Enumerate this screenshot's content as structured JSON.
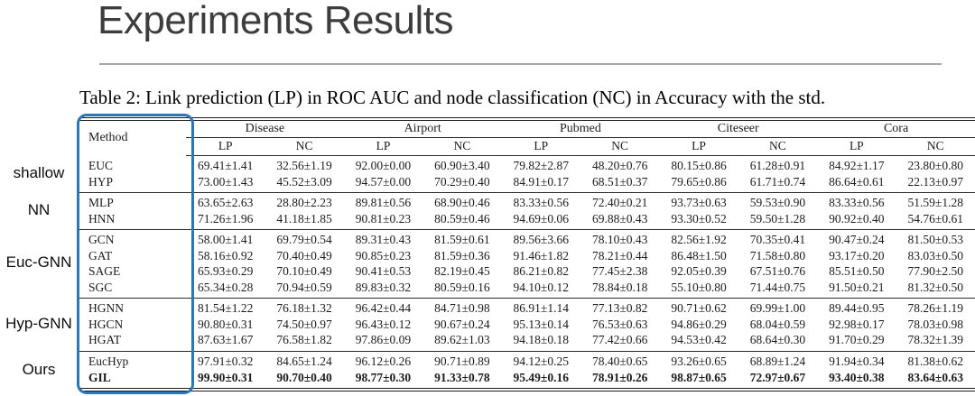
{
  "slide": {
    "title": "Experiments Results",
    "title_color": "#3d3d3d",
    "rule_color": "#a9a9a9"
  },
  "caption": "Table 2: Link prediction (LP) in ROC AUC and node classification (NC) in Accuracy with the std.",
  "table": {
    "outline_color": "#2e75b6",
    "method_header": "Method",
    "datasets": [
      "Disease",
      "Airport",
      "Pubmed",
      "Citeseer",
      "Cora"
    ],
    "metrics": [
      "LP",
      "NC"
    ],
    "groups": [
      {
        "label": "shallow",
        "rows": [
          {
            "method": "EUC",
            "bold": false,
            "values": [
              "69.41±1.41",
              "32.56±1.19",
              "92.00±0.00",
              "60.90±3.40",
              "79.82±2.87",
              "48.20±0.76",
              "80.15±0.86",
              "61.28±0.91",
              "84.92±1.17",
              "23.80±0.80"
            ]
          },
          {
            "method": "HYP",
            "bold": false,
            "values": [
              "73.00±1.43",
              "45.52±3.09",
              "94.57±0.00",
              "70.29±0.40",
              "84.91±0.17",
              "68.51±0.37",
              "79.65±0.86",
              "61.71±0.74",
              "86.64±0.61",
              "22.13±0.97"
            ]
          }
        ]
      },
      {
        "label": "NN",
        "rows": [
          {
            "method": "MLP",
            "bold": false,
            "values": [
              "63.65±2.63",
              "28.80±2.23",
              "89.81±0.56",
              "68.90±0.46",
              "83.33±0.56",
              "72.40±0.21",
              "93.73±0.63",
              "59.53±0.90",
              "83.33±0.56",
              "51.59±1.28"
            ]
          },
          {
            "method": "HNN",
            "bold": false,
            "values": [
              "71.26±1.96",
              "41.18±1.85",
              "90.81±0.23",
              "80.59±0.46",
              "94.69±0.06",
              "69.88±0.43",
              "93.30±0.52",
              "59.50±1.28",
              "90.92±0.40",
              "54.76±0.61"
            ]
          }
        ]
      },
      {
        "label": "Euc-GNN",
        "rows": [
          {
            "method": "GCN",
            "bold": false,
            "values": [
              "58.00±1.41",
              "69.79±0.54",
              "89.31±0.43",
              "81.59±0.61",
              "89.56±3.66",
              "78.10±0.43",
              "82.56±1.92",
              "70.35±0.41",
              "90.47±0.24",
              "81.50±0.53"
            ]
          },
          {
            "method": "GAT",
            "bold": false,
            "values": [
              "58.16±0.92",
              "70.40±0.49",
              "90.85±0.23",
              "81.59±0.36",
              "91.46±1.82",
              "78.21±0.44",
              "86.48±1.50",
              "71.58±0.80",
              "93.17±0.20",
              "83.03±0.50"
            ]
          },
          {
            "method": "SAGE",
            "bold": false,
            "values": [
              "65.93±0.29",
              "70.10±0.49",
              "90.41±0.53",
              "82.19±0.45",
              "86.21±0.82",
              "77.45±2.38",
              "92.05±0.39",
              "67.51±0.76",
              "85.51±0.50",
              "77.90±2.50"
            ]
          },
          {
            "method": "SGC",
            "bold": false,
            "values": [
              "65.34±0.28",
              "70.94±0.59",
              "89.83±0.32",
              "80.59±0.16",
              "94.10±0.12",
              "78.84±0.18",
              "55.10±0.80",
              "71.44±0.75",
              "91.50±0.21",
              "81.32±0.50"
            ]
          }
        ]
      },
      {
        "label": "Hyp-GNN",
        "rows": [
          {
            "method": "HGNN",
            "bold": false,
            "values": [
              "81.54±1.22",
              "76.18±1.32",
              "96.42±0.44",
              "84.71±0.98",
              "86.91±1.14",
              "77.13±0.82",
              "90.71±0.62",
              "69.99±1.00",
              "89.44±0.95",
              "78.26±1.19"
            ]
          },
          {
            "method": "HGCN",
            "bold": false,
            "values": [
              "90.80±0.31",
              "74.50±0.97",
              "96.43±0.12",
              "90.67±0.24",
              "95.13±0.14",
              "76.53±0.63",
              "94.86±0.29",
              "68.04±0.59",
              "92.98±0.17",
              "78.03±0.98"
            ]
          },
          {
            "method": "HGAT",
            "bold": false,
            "values": [
              "87.63±1.67",
              "76.58±1.82",
              "97.86±0.09",
              "89.62±1.03",
              "94.18±0.18",
              "77.42±0.66",
              "94.53±0.42",
              "68.64±0.30",
              "91.70±0.29",
              "78.32±1.39"
            ]
          }
        ]
      },
      {
        "label": "Ours",
        "rows": [
          {
            "method": "EucHyp",
            "bold": false,
            "values": [
              "97.91±0.32",
              "84.65±1.24",
              "96.12±0.26",
              "90.71±0.89",
              "94.12±0.25",
              "78.40±0.65",
              "93.26±0.65",
              "68.89±1.24",
              "91.94±0.34",
              "81.38±0.62"
            ]
          },
          {
            "method": "GIL",
            "bold": true,
            "values": [
              "99.90±0.31",
              "90.70±0.40",
              "98.77±0.30",
              "91.33±0.78",
              "95.49±0.16",
              "78.91±0.26",
              "98.87±0.65",
              "72.97±0.67",
              "93.40±0.38",
              "83.64±0.63"
            ]
          }
        ]
      }
    ]
  }
}
